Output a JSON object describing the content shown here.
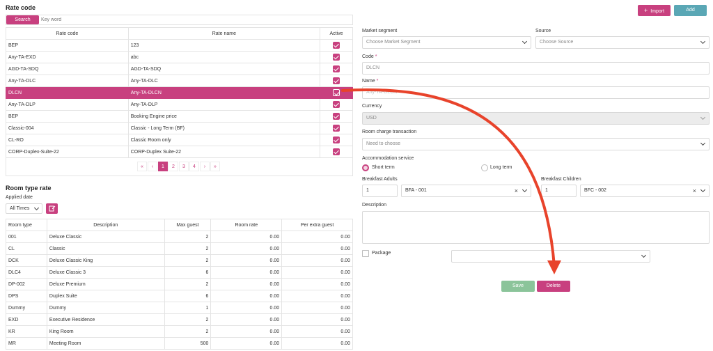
{
  "rate_code": {
    "title": "Rate code",
    "search_label": "Search",
    "keyword_placeholder": "Key word",
    "columns": [
      "Rate code",
      "Rate name",
      "Active"
    ],
    "rows": [
      {
        "code": "BEP",
        "name": "123"
      },
      {
        "code": "Any-TA-EXD",
        "name": "abc"
      },
      {
        "code": "AGD-TA-SDQ",
        "name": "AGD-TA-SDQ"
      },
      {
        "code": "Any-TA-DLC",
        "name": "Any-TA-DLC"
      },
      {
        "code": "DLCN",
        "name": "Any-TA-DLCN"
      },
      {
        "code": "Any-TA-DLP",
        "name": "Any-TA-DLP"
      },
      {
        "code": "BEP",
        "name": "Booking Engine price"
      },
      {
        "code": "Classic-004",
        "name": "Classic - Long Term (BF)"
      },
      {
        "code": "CL-RO",
        "name": "Classic Room only"
      },
      {
        "code": "CORP-Duplex-Suite-22",
        "name": "CORP-Duplex Suite-22"
      }
    ],
    "pagination": {
      "first": "«",
      "prev": "‹",
      "pages": [
        "1",
        "2",
        "3",
        "4"
      ],
      "next": "›",
      "last": "»"
    }
  },
  "room_type_rate": {
    "title": "Room type rate",
    "applied_date_label": "Applied date",
    "applied_date_value": "All Times",
    "columns": [
      "Room type",
      "Description",
      "Max guest",
      "Room rate",
      "Per extra guest"
    ],
    "rows": [
      {
        "type": "001",
        "desc": "Deluxe Classic",
        "max": "2",
        "rate": "0.00",
        "extra": "0.00"
      },
      {
        "type": "CL",
        "desc": "Classic",
        "max": "2",
        "rate": "0.00",
        "extra": "0.00"
      },
      {
        "type": "DCK",
        "desc": "Deluxe Classic King",
        "max": "2",
        "rate": "0.00",
        "extra": "0.00"
      },
      {
        "type": "DLC4",
        "desc": "Deluxe Classic 3",
        "max": "6",
        "rate": "0.00",
        "extra": "0.00"
      },
      {
        "type": "DP-002",
        "desc": "Deluxe Premium",
        "max": "2",
        "rate": "0.00",
        "extra": "0.00"
      },
      {
        "type": "DPS",
        "desc": "Duplex Suite",
        "max": "6",
        "rate": "0.00",
        "extra": "0.00"
      },
      {
        "type": "Dummy",
        "desc": "Dummy",
        "max": "1",
        "rate": "0.00",
        "extra": "0.00"
      },
      {
        "type": "EXD",
        "desc": "Executive Residence",
        "max": "2",
        "rate": "0.00",
        "extra": "0.00"
      },
      {
        "type": "KR",
        "desc": "King Room",
        "max": "2",
        "rate": "0.00",
        "extra": "0.00"
      },
      {
        "type": "MR",
        "desc": "Meeting Room",
        "max": "500",
        "rate": "0.00",
        "extra": "0.00"
      }
    ]
  },
  "toolbar": {
    "import_label": "Import",
    "add_label": "Add"
  },
  "form": {
    "market_segment_label": "Market segment",
    "market_segment_placeholder": "Choose Market Segment",
    "source_label": "Source",
    "source_placeholder": "Choose Source",
    "code_label": "Code",
    "code_value": "DLCN",
    "name_label": "Name",
    "name_value": "Any-TA-DLCN",
    "required_mark": "*",
    "currency_label": "Currency",
    "currency_value": "USD",
    "room_charge_label": "Room charge transaction",
    "room_charge_placeholder": "Need to choose",
    "accommodation_label": "Accommodation service",
    "short_term_label": "Short term",
    "long_term_label": "Long term",
    "breakfast_adults_label": "Breakfast Adults",
    "breakfast_adults_qty": "1",
    "breakfast_adults_item": "BFA - 001",
    "breakfast_children_label": "Breakfast Children",
    "breakfast_children_qty": "1",
    "breakfast_children_item": "BFC - 002",
    "description_label": "Description",
    "package_label": "Package",
    "save_label": "Save",
    "delete_label": "Delete"
  },
  "colors": {
    "accent": "#c8407f",
    "teal": "#5aa7b5",
    "green": "#8bc49a",
    "arrow": "#e8432b"
  }
}
